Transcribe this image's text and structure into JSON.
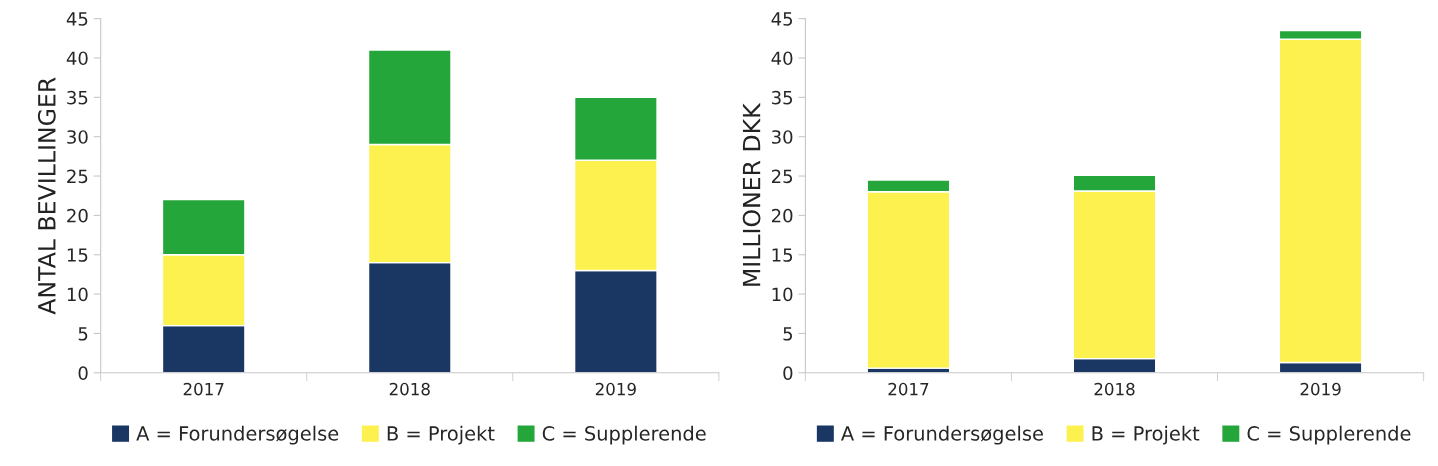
{
  "chart_data": [
    {
      "type": "bar",
      "stacked": true,
      "ylabel": "ANTAL BEVILLINGER",
      "categories": [
        "2017",
        "2018",
        "2019"
      ],
      "ylim": [
        0,
        45
      ],
      "yticks": [
        0,
        5,
        10,
        15,
        20,
        25,
        30,
        35,
        40,
        45
      ],
      "grid": false,
      "legend": "bottom",
      "series": [
        {
          "name": "A = Forundersøgelse",
          "color": "#1a3764",
          "values": [
            6,
            14,
            13
          ]
        },
        {
          "name": "B = Projekt",
          "color": "#fdf150",
          "values": [
            9,
            15,
            14
          ]
        },
        {
          "name": "C = Supplerende",
          "color": "#24a63a",
          "values": [
            7,
            12,
            8
          ]
        }
      ]
    },
    {
      "type": "bar",
      "stacked": true,
      "ylabel": "MILLIONER DKK",
      "categories": [
        "2017",
        "2018",
        "2019"
      ],
      "ylim": [
        0,
        45
      ],
      "yticks": [
        0,
        5,
        10,
        15,
        20,
        25,
        30,
        35,
        40,
        45
      ],
      "grid": false,
      "legend": "bottom",
      "series": [
        {
          "name": "A = Forundersøgelse",
          "color": "#1a3764",
          "values": [
            0.6,
            1.8,
            1.3
          ]
        },
        {
          "name": "B = Projekt",
          "color": "#fdf150",
          "values": [
            22.4,
            21.3,
            41.1
          ]
        },
        {
          "name": "C = Supplerende",
          "color": "#24a63a",
          "values": [
            1.5,
            2.0,
            1.1
          ]
        }
      ]
    }
  ]
}
